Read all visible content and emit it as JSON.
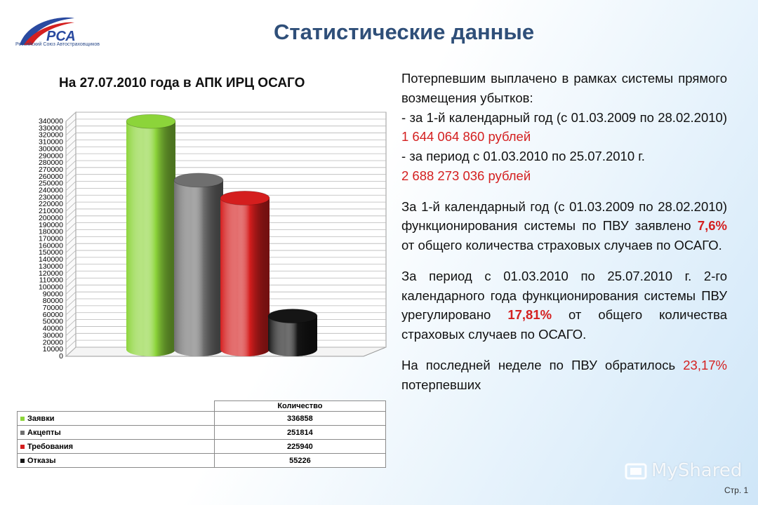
{
  "header": {
    "title": "Статистические данные",
    "logo_caption": "Российский Союз Автостраховщиков"
  },
  "chart_data": {
    "type": "bar",
    "title": "На 27.07.2010 года в АПК ИРЦ ОСАГО",
    "categories": [
      "Заявки",
      "Акцепты",
      "Требования",
      "Отказы"
    ],
    "series_label": "Количество",
    "values": [
      336858,
      251814,
      225940,
      55226
    ],
    "colors": [
      "#8cd43a",
      "#6f6f6f",
      "#d41e1e",
      "#151515"
    ],
    "ylim": [
      0,
      340000
    ],
    "ytick_step": 10000,
    "ytick_labels": [
      "0",
      "10000",
      "20000",
      "30000",
      "40000",
      "50000",
      "60000",
      "70000",
      "80000",
      "90000",
      "100000",
      "110000",
      "120000",
      "130000",
      "140000",
      "150000",
      "160000",
      "170000",
      "180000",
      "190000",
      "200000",
      "210000",
      "220000",
      "230000",
      "240000",
      "250000",
      "260000",
      "270000",
      "280000",
      "290000",
      "300000",
      "310000",
      "320000",
      "330000",
      "340000"
    ],
    "value_labels": [
      "336858",
      "251814",
      "225940",
      "55226"
    ],
    "grid": true,
    "legend": "table-below"
  },
  "text": {
    "p1_a": "Потерпевшим выплачено в рамках системы прямого возмещения убытков:",
    "p1_b": "- за 1-й календарный год (с 01.03.2009 по 28.02.2010)",
    "p1_b_amount": "1 644 064 860 рублей",
    "p1_c": "- за период с 01.03.2010 по 25.07.2010 г.",
    "p1_c_amount": "2 688 273 036 рублей",
    "p2_a": "За 1-й календарный год (с 01.03.2009 по 28.02.2010) функционирования системы по ПВУ заявлено",
    "p2_pct": "7,6%",
    "p2_b": "от общего количества страховых случаев по ОСАГО.",
    "p3_a": "За период с 01.03.2010 по 25.07.2010 г. 2-го календарного года функционирования системы ПВУ урегулировано",
    "p3_pct": "17,81%",
    "p3_b": "от общего количества страховых случаев по ОСАГО.",
    "p4_a": "На последней неделе по ПВУ обратилось",
    "p4_pct": "23,17%",
    "p4_b": "потерпевших"
  },
  "footer": {
    "watermark": "MyShared",
    "page_number": "Стр. 1"
  }
}
